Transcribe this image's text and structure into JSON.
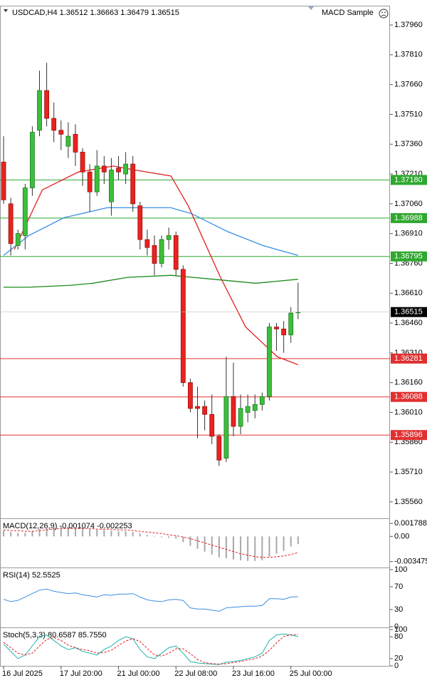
{
  "chart_data": [
    {
      "type": "candlestick",
      "title": "USDCAD,H4  1.36512 1.36663 1.36479 1.36515",
      "expert": "MACD Sample",
      "ylim": [
        1.35477,
        1.38057
      ],
      "xlim": [
        -0.5,
        53.8
      ],
      "yticks": [
        {
          "value": 1.3796,
          "label": "1.37960"
        },
        {
          "value": 1.3781,
          "label": "1.37810"
        },
        {
          "value": 1.3766,
          "label": "1.37660"
        },
        {
          "value": 1.3751,
          "label": "1.37510"
        },
        {
          "value": 1.3736,
          "label": "1.37360"
        },
        {
          "value": 1.3721,
          "label": "1.37210"
        },
        {
          "value": 1.3706,
          "label": "1.37060"
        },
        {
          "value": 1.3691,
          "label": "1.36910"
        },
        {
          "value": 1.3676,
          "label": "1.36760"
        },
        {
          "value": 1.3661,
          "label": "1.36610"
        },
        {
          "value": 1.3646,
          "label": "1.36460"
        },
        {
          "value": 1.3631,
          "label": "1.36310"
        },
        {
          "value": 1.3616,
          "label": "1.36160"
        },
        {
          "value": 1.3601,
          "label": "1.36010"
        },
        {
          "value": 1.3586,
          "label": "1.35860"
        },
        {
          "value": 1.3571,
          "label": "1.35710"
        },
        {
          "value": 1.3556,
          "label": "1.35560"
        }
      ],
      "xticks": [
        {
          "value": 0,
          "label": "16 Jul 2025"
        },
        {
          "value": 8,
          "label": "17 Jul 20:00"
        },
        {
          "value": 16,
          "label": "21 Jul 00:00"
        },
        {
          "value": 24,
          "label": "22 Jul 08:00"
        },
        {
          "value": 32,
          "label": "23 Jul 16:00"
        },
        {
          "value": 40,
          "label": "25 Jul 00:00"
        }
      ],
      "bull_color": "#3cbf3c",
      "bear_color": "#e8231e",
      "candles": {
        "open": [
          1.3727,
          1.3706,
          1.3685,
          1.369,
          1.3714,
          1.3743,
          1.3763,
          1.3749,
          1.3743,
          1.3735,
          1.3741,
          1.3732,
          1.3722,
          1.3712,
          1.3725,
          1.3707,
          1.3724,
          1.3721,
          1.3726,
          1.3705,
          1.3688,
          1.3685,
          1.3676,
          1.3688,
          1.369,
          1.3673,
          1.3616,
          1.3604,
          1.3604,
          1.36,
          1.3589,
          1.3578,
          1.3609,
          1.3594,
          1.3601,
          1.3602,
          1.3605,
          1.3609,
          1.3644,
          1.3643,
          1.364,
          1.36512
        ],
        "high": [
          1.374,
          1.3709,
          1.3693,
          1.3716,
          1.3745,
          1.3773,
          1.3777,
          1.3757,
          1.3748,
          1.3747,
          1.3746,
          1.3734,
          1.3726,
          1.3733,
          1.373,
          1.3729,
          1.373,
          1.3732,
          1.373,
          1.3707,
          1.3693,
          1.369,
          1.369,
          1.3694,
          1.3692,
          1.3675,
          1.3618,
          1.3614,
          1.3607,
          1.361,
          1.359,
          1.3629,
          1.3626,
          1.361,
          1.361,
          1.361,
          1.3611,
          1.3646,
          1.3646,
          1.3647,
          1.3654,
          1.36663
        ],
        "low": [
          1.3706,
          1.368,
          1.3683,
          1.3683,
          1.371,
          1.374,
          1.3745,
          1.3737,
          1.3733,
          1.3729,
          1.3725,
          1.3715,
          1.3702,
          1.371,
          1.3716,
          1.37,
          1.3718,
          1.3716,
          1.3702,
          1.3683,
          1.368,
          1.367,
          1.3674,
          1.3683,
          1.367,
          1.3614,
          1.3601,
          1.3588,
          1.3592,
          1.3585,
          1.3574,
          1.3576,
          1.3589,
          1.359,
          1.3596,
          1.3598,
          1.3602,
          1.3607,
          1.3632,
          1.3631,
          1.3636,
          1.36479
        ],
        "close": [
          1.3708,
          1.3686,
          1.3691,
          1.3714,
          1.3742,
          1.3763,
          1.3749,
          1.3743,
          1.3741,
          1.374,
          1.3732,
          1.3722,
          1.3712,
          1.3725,
          1.3722,
          1.3723,
          1.3722,
          1.3726,
          1.3706,
          1.3688,
          1.3684,
          1.3676,
          1.3688,
          1.369,
          1.3673,
          1.3616,
          1.3603,
          1.3603,
          1.36,
          1.3589,
          1.3577,
          1.3609,
          1.3594,
          1.3603,
          1.3604,
          1.3605,
          1.3609,
          1.3644,
          1.3643,
          1.364,
          1.3651,
          1.36515
        ]
      },
      "current": {
        "value": 1.36515,
        "label": "1.36515"
      },
      "lines": [
        {
          "color": "#e02020",
          "x": [
            1.5,
            5.4,
            10.4,
            15.3,
            18.3,
            23.3,
            25.7,
            30.2,
            33.7,
            38.1,
            41
          ],
          "values": [
            1.3683,
            1.3713,
            1.3722,
            1.3725,
            1.3723,
            1.372,
            1.3705,
            1.3669,
            1.3644,
            1.3629,
            1.3625
          ]
        },
        {
          "color": "#3a8fe0",
          "x": [
            0,
            3.5,
            8.4,
            14.4,
            18.3,
            23.3,
            26.2,
            31.2,
            36.1,
            41
          ],
          "values": [
            1.368,
            1.369,
            1.3699,
            1.3704,
            1.3704,
            1.3704,
            1.3701,
            1.3692,
            1.3685,
            1.368
          ]
        },
        {
          "color": "#1a8a1a",
          "x": [
            0,
            3.5,
            9.4,
            12.4,
            17.3,
            23.3,
            29.2,
            35.1,
            41
          ],
          "values": [
            1.3664,
            1.3664,
            1.3665,
            1.3666,
            1.3669,
            1.367,
            1.3668,
            1.3666,
            1.3668
          ]
        }
      ],
      "levels": [
        {
          "value": 1.3718,
          "label": "1.37180",
          "color": "#2ea82e"
        },
        {
          "value": 1.36988,
          "label": "1.36988",
          "color": "#2ea82e"
        },
        {
          "value": 1.36795,
          "label": "1.36795",
          "color": "#2ea82e"
        },
        {
          "value": 1.36281,
          "label": "1.36281",
          "color": "#e03030"
        },
        {
          "value": 1.36088,
          "label": "1.36088",
          "color": "#e03030"
        },
        {
          "value": 1.35896,
          "label": "1.35896",
          "color": "#e03030"
        }
      ]
    },
    {
      "type": "macd",
      "title": "MACD(12,26,9) -0.001074 -0.002253",
      "ylim": [
        -0.0043,
        0.0024
      ],
      "yticks": [
        0.001788,
        {
          "value": 0,
          "label": "0.00"
        },
        -0.003475
      ],
      "bars": {
        "color": "#a8a8a8",
        "values": [
          0.0008,
          0.0006,
          0.0005,
          0.0005,
          0.0007,
          0.001,
          0.0012,
          0.0013,
          0.0013,
          0.0013,
          0.0012,
          0.0011,
          0.001,
          0.0009,
          0.0009,
          0.0008,
          0.0007,
          0.0007,
          0.0006,
          0.0004,
          0.0002,
          0,
          -0.0001,
          -0.0002,
          -0.0003,
          -0.0008,
          -0.0013,
          -0.0017,
          -0.0021,
          -0.0025,
          -0.0029,
          -0.003,
          -0.0032,
          -0.0033,
          -0.0034,
          -0.0034,
          -0.0033,
          -0.0028,
          -0.0024,
          -0.002,
          -0.0014,
          -0.001074
        ]
      },
      "signal": {
        "color": "#e02020",
        "values": [
          0.0009,
          0.0008,
          0.0008,
          0.0007,
          0.0007,
          0.0008,
          0.0009,
          0.001,
          0.0011,
          0.0011,
          0.0011,
          0.0011,
          0.0011,
          0.001,
          0.001,
          0.001,
          0.0009,
          0.0009,
          0.0008,
          0.0007,
          0.0006,
          0.0005,
          0.0004,
          0.0002,
          0.0001,
          -0.0001,
          -0.0003,
          -0.0006,
          -0.0009,
          -0.0012,
          -0.0015,
          -0.0018,
          -0.0021,
          -0.0024,
          -0.0026,
          -0.0028,
          -0.0029,
          -0.0029,
          -0.0028,
          -0.0027,
          -0.0025,
          -0.002253
        ]
      }
    },
    {
      "type": "rsi",
      "title": "RSI(14) 52.5525",
      "ylim": [
        -1.25,
        102.5
      ],
      "yticks": [
        100,
        70,
        30,
        0
      ],
      "line": {
        "color": "#3a8fe0",
        "values": [
          48,
          44,
          46,
          52,
          58,
          64,
          66,
          62,
          60,
          58,
          59,
          56,
          54,
          52,
          56,
          55,
          57,
          57,
          58,
          52,
          47,
          45,
          44,
          47,
          48,
          46,
          33,
          31,
          31,
          29,
          27,
          33,
          34,
          35,
          36,
          36,
          37,
          49,
          49,
          48,
          52,
          52.5525
        ]
      }
    },
    {
      "type": "stochastic",
      "title": "Stoch(5,3,3) 80.6587 85.7550",
      "ylim": [
        0,
        104
      ],
      "yticks": [
        100,
        80,
        20,
        0
      ],
      "main": {
        "color": "#20b2aa",
        "values": [
          60,
          40,
          20,
          30,
          55,
          80,
          85,
          70,
          55,
          45,
          50,
          40,
          35,
          30,
          45,
          55,
          70,
          80,
          75,
          45,
          25,
          20,
          35,
          50,
          55,
          35,
          12,
          8,
          6,
          5,
          4,
          10,
          12,
          15,
          20,
          25,
          35,
          70,
          85,
          88,
          85,
          80.6587
        ]
      },
      "signal": {
        "color": "#e02020",
        "values": [
          65,
          50,
          35,
          30,
          35,
          55,
          73,
          78,
          70,
          57,
          50,
          45,
          42,
          35,
          37,
          43,
          56,
          68,
          75,
          67,
          48,
          30,
          27,
          35,
          47,
          47,
          34,
          18,
          9,
          6,
          5,
          6,
          9,
          12,
          16,
          20,
          27,
          43,
          63,
          81,
          86,
          85.755
        ]
      }
    }
  ]
}
